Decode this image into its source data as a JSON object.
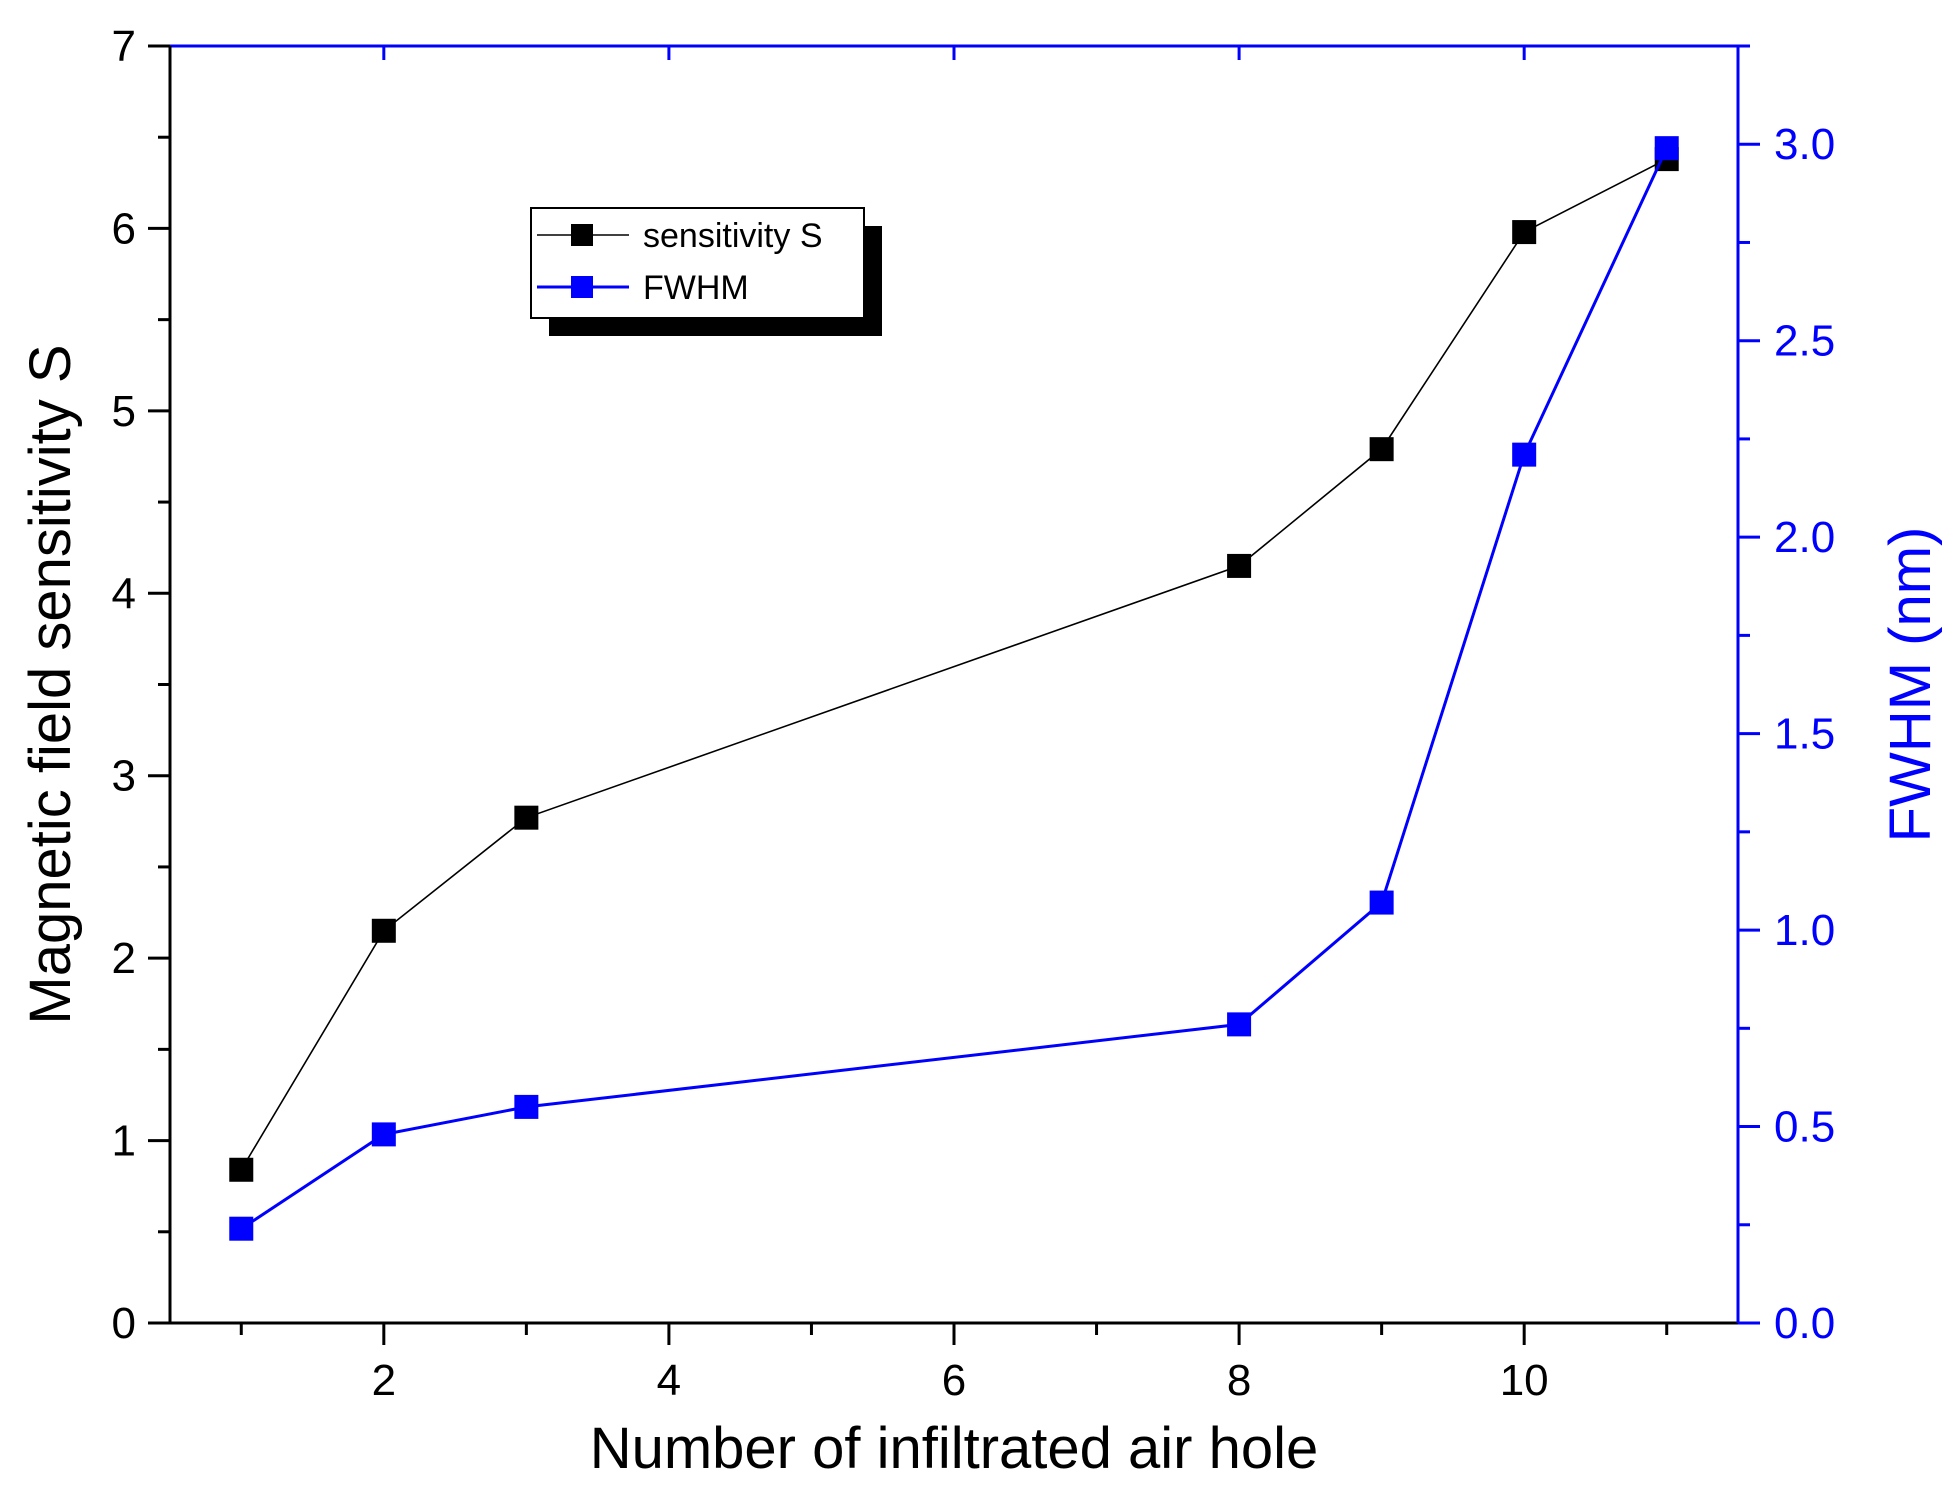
{
  "chart_data": {
    "type": "line",
    "xlabel": "Number of infiltrated air hole",
    "ylabel": "Magnetic field sensitivity S",
    "y2label": "FWHM (nm)",
    "xlim": [
      0.5,
      11.5
    ],
    "ylim": [
      0,
      7
    ],
    "y2lim": [
      0,
      3.25
    ],
    "xticks": [
      2,
      4,
      6,
      8,
      10
    ],
    "xtick_labels": [
      "2",
      "4",
      "6",
      "8",
      "10"
    ],
    "yticks": [
      0,
      1,
      2,
      3,
      4,
      5,
      6,
      7
    ],
    "ytick_labels": [
      "0",
      "1",
      "2",
      "3",
      "4",
      "5",
      "6",
      "7"
    ],
    "y2ticks": [
      0,
      0.5,
      1,
      1.5,
      2,
      2.5,
      3
    ],
    "y2tick_labels": [
      "0.0",
      "0.5",
      "1.0",
      "1.5",
      "2.0",
      "2.5",
      "3.0"
    ],
    "x": [
      1,
      2,
      3,
      8,
      9,
      10,
      11
    ],
    "series": [
      {
        "name": "sensitivity S",
        "axis": "left",
        "color": "#000000",
        "values": [
          0.84,
          2.15,
          2.77,
          4.15,
          4.79,
          5.98,
          6.38
        ]
      },
      {
        "name": "FWHM",
        "axis": "right",
        "color": "#0000ff",
        "values": [
          0.24,
          0.48,
          0.55,
          0.76,
          1.07,
          2.21,
          2.99
        ]
      }
    ],
    "legend": {
      "placement": "upper-left",
      "entries": [
        "sensitivity S",
        "FWHM"
      ]
    },
    "grid": false
  }
}
